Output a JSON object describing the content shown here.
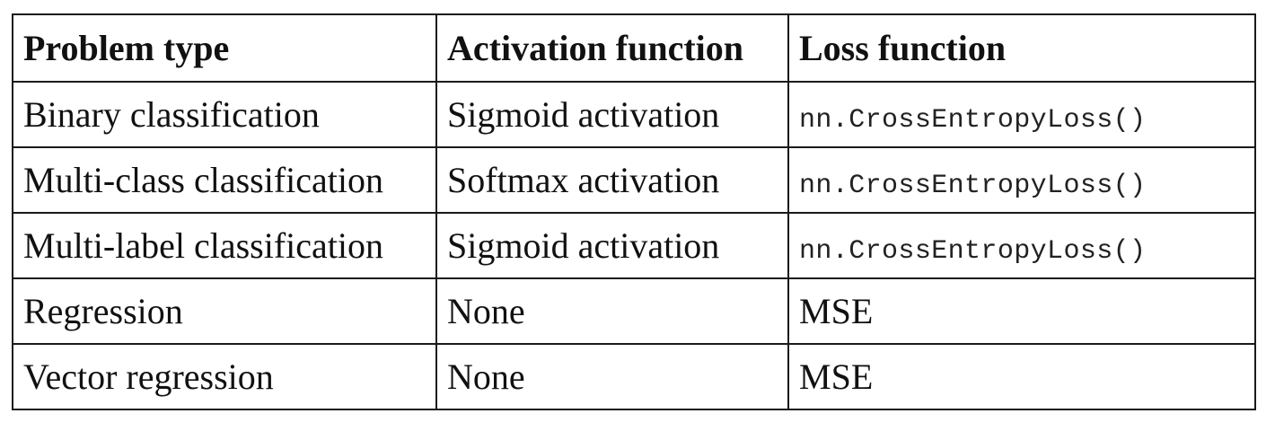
{
  "table": {
    "headers": [
      "Problem type",
      "Activation function",
      "Loss function"
    ],
    "rows": [
      {
        "problem": "Binary classification",
        "activation": "Sigmoid activation",
        "loss": "nn.CrossEntropyLoss()",
        "loss_is_code": true
      },
      {
        "problem": "Multi-class classification",
        "activation": "Softmax activation",
        "loss": "nn.CrossEntropyLoss()",
        "loss_is_code": true
      },
      {
        "problem": "Multi-label classification",
        "activation": "Sigmoid activation",
        "loss": "nn.CrossEntropyLoss()",
        "loss_is_code": true
      },
      {
        "problem": "Regression",
        "activation": "None",
        "loss": "MSE",
        "loss_is_code": false
      },
      {
        "problem": "Vector regression",
        "activation": "None",
        "loss": "MSE",
        "loss_is_code": false
      }
    ]
  }
}
